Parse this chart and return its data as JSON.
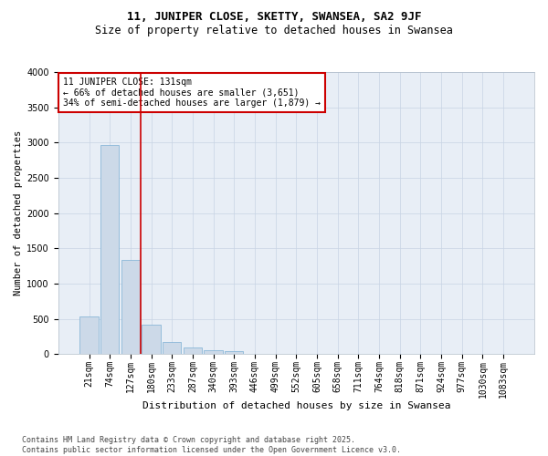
{
  "title": "11, JUNIPER CLOSE, SKETTY, SWANSEA, SA2 9JF",
  "subtitle": "Size of property relative to detached houses in Swansea",
  "xlabel": "Distribution of detached houses by size in Swansea",
  "ylabel": "Number of detached properties",
  "bar_color": "#ccd9e8",
  "bar_edge_color": "#7bafd4",
  "grid_color": "#c8d4e4",
  "background_color": "#e8eef6",
  "vline_x": 2.5,
  "vline_color": "#cc0000",
  "annotation_text": "11 JUNIPER CLOSE: 131sqm\n← 66% of detached houses are smaller (3,651)\n34% of semi-detached houses are larger (1,879) →",
  "annotation_box_color": "#cc0000",
  "categories": [
    "21sqm",
    "74sqm",
    "127sqm",
    "180sqm",
    "233sqm",
    "287sqm",
    "340sqm",
    "393sqm",
    "446sqm",
    "499sqm",
    "552sqm",
    "605sqm",
    "658sqm",
    "711sqm",
    "764sqm",
    "818sqm",
    "871sqm",
    "924sqm",
    "977sqm",
    "1030sqm",
    "1083sqm"
  ],
  "values": [
    530,
    2960,
    1340,
    415,
    175,
    90,
    55,
    40,
    0,
    0,
    0,
    0,
    0,
    0,
    0,
    0,
    0,
    0,
    0,
    0,
    0
  ],
  "ylim": [
    0,
    4000
  ],
  "yticks": [
    0,
    500,
    1000,
    1500,
    2000,
    2500,
    3000,
    3500,
    4000
  ],
  "footer": "Contains HM Land Registry data © Crown copyright and database right 2025.\nContains public sector information licensed under the Open Government Licence v3.0.",
  "title_fontsize": 9,
  "subtitle_fontsize": 8.5,
  "xlabel_fontsize": 8,
  "ylabel_fontsize": 7.5,
  "tick_fontsize": 7,
  "footer_fontsize": 6,
  "ann_fontsize": 7
}
